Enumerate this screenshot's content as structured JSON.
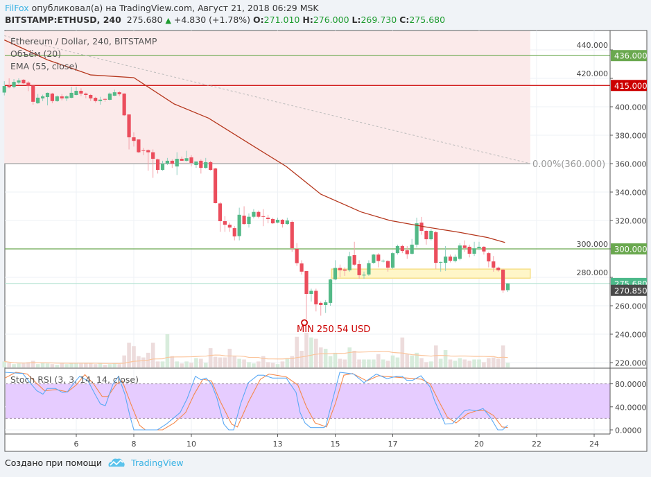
{
  "header": {
    "author": "FilFox",
    "published_text": "опубликовал(а) на TradingView.com, Август 21, 2018 06:29 MSK",
    "symbol": "BITSTAMP:ETHUSD, 240",
    "last": "275.680",
    "change": "+4.830 (+1.78%)",
    "o_label": "O:",
    "o": "271.010",
    "h_label": "H:",
    "h": "276.000",
    "l_label": "L:",
    "l": "269.730",
    "c_label": "C:",
    "c": "275.680"
  },
  "legend": {
    "title": "Ethereum / Dollar, 240, BITSTAMP",
    "volume": "Объём (20)",
    "ema": "EMA (55, close)",
    "stoch": "Stoch RSI (3, 3, 14, 14, close)"
  },
  "annotations": {
    "min_label": "MIN 250.54 USD",
    "fib_label": "0.00%(360.000)"
  },
  "footer": {
    "created_with": "Создано при помощи",
    "brand": "TradingView"
  },
  "colors": {
    "up": "#53b987",
    "down": "#eb4d5c",
    "ema": "#b5361c",
    "accent": "#3bb3e4",
    "resistance_red": "#cc0000",
    "level_green": "#6aa84f",
    "stoch_k": "#5aa9f5",
    "stoch_d": "#f5884b",
    "stoch_band": "#e6ccff",
    "zone_pink": "#fbeaea",
    "zone_yellow": "#fff6c8"
  },
  "chart_data": {
    "type": "candlestick",
    "interval_hours": 4,
    "first_candle_day": 3.5,
    "x_ticks": [
      "6",
      "8",
      "10",
      "13",
      "15",
      "17",
      "20",
      "22",
      "24"
    ],
    "x_tick_days": [
      6,
      8,
      10,
      13,
      15,
      17,
      20,
      22,
      24
    ],
    "y_ticks": [
      "440.000",
      "420.000",
      "400.000",
      "380.000",
      "360.000",
      "340.000",
      "320.000",
      "300.000",
      "280.000",
      "260.000",
      "240.000",
      "220.000"
    ],
    "y_tick_values": [
      440,
      420,
      400,
      380,
      360,
      340,
      320,
      300,
      280,
      260,
      240,
      220
    ],
    "ylim": [
      214,
      455
    ],
    "price_labels": [
      {
        "text": "436.000",
        "value": 436,
        "color": "#6aa84f"
      },
      {
        "text": "415.000",
        "value": 415,
        "color": "#cc0000"
      },
      {
        "text": "300.000",
        "value": 300,
        "color": "#6aa84f"
      },
      {
        "text": "275.680",
        "value": 275.68,
        "color": "#4cb98a"
      },
      {
        "text": "270.850",
        "value": 270.85,
        "color": "#4a4a4a"
      }
    ],
    "horizontal_lines": [
      {
        "value": 436,
        "color": "#6aa84f"
      },
      {
        "value": 415,
        "color": "#cc0000"
      },
      {
        "value": 300,
        "color": "#6aa84f"
      },
      {
        "value": 275.68,
        "color": "#b7e4d4"
      }
    ],
    "fib_level": {
      "value": 360,
      "pct": "0.00%",
      "start_day": 3.5,
      "end_day": 21.78
    },
    "trend_line": [
      [
        3.5,
        450
      ],
      [
        21.78,
        360
      ]
    ],
    "support_zone": {
      "start_day": 14.87,
      "end_day": 21.78,
      "high": 285.8,
      "low": 279.4
    },
    "min_point": {
      "day": 13.93,
      "value": 250.54
    },
    "candles_ohlc": [
      [
        410,
        418,
        408,
        414.6
      ],
      [
        414.6,
        420,
        413,
        413.7
      ],
      [
        414,
        419.5,
        413,
        417.5
      ],
      [
        417,
        420,
        416,
        418.5
      ],
      [
        419,
        419.5,
        416,
        416.5
      ],
      [
        417,
        418,
        411,
        414.6
      ],
      [
        415,
        415,
        401.5,
        403.5
      ],
      [
        402.5,
        409,
        402,
        406.4
      ],
      [
        405.9,
        408.5,
        404,
        407.3
      ],
      [
        406.8,
        410,
        401,
        409.8
      ],
      [
        409.3,
        409.8,
        402.5,
        404
      ],
      [
        404,
        408,
        403.5,
        407.3
      ],
      [
        407.3,
        409,
        404.5,
        405.9
      ],
      [
        405.9,
        408,
        404,
        407.3
      ],
      [
        406.3,
        414,
        406,
        409.8
      ],
      [
        408.3,
        414,
        408,
        411.2
      ],
      [
        411.2,
        413,
        407.5,
        409.3
      ],
      [
        409.3,
        410,
        406,
        408.3
      ],
      [
        408.3,
        409,
        404,
        405.9
      ],
      [
        406.3,
        407,
        403,
        404
      ],
      [
        404,
        407,
        401.5,
        405
      ],
      [
        405.5,
        406,
        403.5,
        405
      ],
      [
        404.9,
        410,
        404.5,
        409.3
      ],
      [
        407.8,
        412,
        407.5,
        410.2
      ],
      [
        410.2,
        411,
        407.5,
        408.8
      ],
      [
        409.3,
        409.5,
        393.5,
        394
      ],
      [
        394.6,
        394.6,
        370,
        378.5
      ],
      [
        378.5,
        382,
        372,
        376
      ],
      [
        377,
        377,
        367.5,
        368
      ],
      [
        369.4,
        371,
        366,
        369
      ],
      [
        369.5,
        370,
        355,
        368
      ],
      [
        368,
        370,
        350,
        363.4
      ],
      [
        363,
        363.5,
        353,
        355.6
      ],
      [
        355.6,
        362,
        355,
        360
      ],
      [
        360,
        364,
        359,
        362
      ],
      [
        362,
        363,
        357,
        360
      ],
      [
        358,
        368,
        352,
        363.4
      ],
      [
        363.4,
        365,
        362,
        362
      ],
      [
        362,
        369,
        361.5,
        363.8
      ],
      [
        364.4,
        366,
        358,
        360.5
      ],
      [
        359,
        361.5,
        357,
        361.5
      ],
      [
        362,
        363,
        353,
        357
      ],
      [
        357,
        364,
        356.5,
        361
      ],
      [
        361,
        362,
        355,
        355.6
      ],
      [
        356.6,
        357,
        332,
        332.2
      ],
      [
        332,
        333,
        312,
        319.5
      ],
      [
        319.5,
        323,
        312,
        317
      ],
      [
        317,
        318.5,
        312,
        315
      ],
      [
        314.6,
        316,
        306,
        308.8
      ],
      [
        309,
        329,
        306,
        324
      ],
      [
        323.4,
        330,
        317,
        317.5
      ],
      [
        317.5,
        325,
        315,
        322.6
      ],
      [
        322.6,
        328,
        321.5,
        326
      ],
      [
        326,
        327,
        321.5,
        322.6
      ],
      [
        323,
        328,
        316,
        322.6
      ],
      [
        322,
        324,
        318,
        321
      ],
      [
        321,
        322,
        317.5,
        318
      ],
      [
        318.5,
        322,
        318,
        320.5
      ],
      [
        320.5,
        321,
        315,
        317.5
      ],
      [
        317.5,
        322,
        317,
        320
      ],
      [
        319,
        320,
        298,
        300.5
      ],
      [
        300,
        304,
        288,
        290
      ],
      [
        289.8,
        292,
        282,
        284
      ],
      [
        284.4,
        284.4,
        250.54,
        268.3
      ],
      [
        268.3,
        272,
        263,
        270.5
      ],
      [
        270.5,
        272,
        256,
        261
      ],
      [
        262,
        263,
        253,
        260.5
      ],
      [
        260.5,
        264,
        255,
        262.4
      ],
      [
        262,
        279,
        260,
        278.5
      ],
      [
        278.5,
        292,
        278,
        286.6
      ],
      [
        286.6,
        289,
        280,
        285
      ],
      [
        285.5,
        287,
        281,
        284.7
      ],
      [
        285,
        298,
        284,
        294.9
      ],
      [
        295.6,
        305,
        288,
        288.9
      ],
      [
        289.3,
        292,
        279,
        281.5
      ],
      [
        281.5,
        284,
        279,
        281.8
      ],
      [
        282,
        292,
        281,
        290
      ],
      [
        290.2,
        296.5,
        289.5,
        296
      ],
      [
        296,
        297,
        287,
        291.5
      ],
      [
        291.5,
        292.5,
        290.5,
        291.7
      ],
      [
        291.5,
        292,
        284,
        286.8
      ],
      [
        286.8,
        297.5,
        286,
        297
      ],
      [
        297,
        303,
        296,
        302
      ],
      [
        302,
        303,
        297,
        298.5
      ],
      [
        299,
        302,
        293,
        296.3
      ],
      [
        296.6,
        307,
        296,
        303
      ],
      [
        303,
        322,
        301,
        318
      ],
      [
        318.5,
        322.5,
        310,
        312.7
      ],
      [
        312.7,
        313,
        303,
        306.8
      ],
      [
        306.8,
        314,
        306,
        312.7
      ],
      [
        311.7,
        312.7,
        286,
        290.2
      ],
      [
        290.5,
        291,
        284,
        290.8
      ],
      [
        290.2,
        302,
        284.5,
        294.6
      ],
      [
        294.6,
        296,
        290.5,
        291.7
      ],
      [
        291.5,
        296,
        290.5,
        294.4
      ],
      [
        293,
        304,
        292,
        302.4
      ],
      [
        302.4,
        306,
        298,
        300.6
      ],
      [
        301.5,
        303,
        294,
        296.6
      ],
      [
        296.6,
        305,
        295,
        300.4
      ],
      [
        300.5,
        305,
        299,
        301.5
      ],
      [
        301.5,
        302,
        296,
        298.2
      ],
      [
        297,
        298,
        287,
        291.2
      ],
      [
        291.2,
        295,
        284,
        286.8
      ],
      [
        286.8,
        287.5,
        284,
        285
      ],
      [
        285.4,
        286,
        269,
        270.85
      ],
      [
        271.01,
        276,
        269.73,
        275.68
      ]
    ],
    "volume": [
      9,
      7,
      5,
      6,
      6,
      8,
      10,
      5,
      7,
      6,
      5,
      4,
      6,
      5,
      7,
      7,
      6,
      6,
      6,
      5,
      7,
      4,
      5,
      6,
      5,
      18,
      37,
      32,
      17,
      15,
      22,
      37,
      9,
      9,
      50,
      17,
      9,
      6,
      9,
      7,
      14,
      13,
      7,
      29,
      16,
      15,
      15,
      28,
      17,
      13,
      12,
      8,
      6,
      9,
      17,
      8,
      7,
      5,
      9,
      14,
      17,
      46,
      25,
      52,
      45,
      43,
      30,
      28,
      17,
      22,
      13,
      12,
      30,
      25,
      12,
      12,
      12,
      12,
      20,
      12,
      10,
      18,
      15,
      45,
      20,
      18,
      22,
      14,
      8,
      9,
      33,
      13,
      26,
      12,
      10,
      14,
      12,
      10,
      12,
      12,
      8,
      14,
      15,
      13,
      33,
      7
    ],
    "ema_55": [
      [
        3.5,
        447
      ],
      [
        5.0,
        433
      ],
      [
        6.5,
        422.4
      ],
      [
        8.0,
        420.5
      ],
      [
        9.4,
        402
      ],
      [
        10.6,
        392
      ],
      [
        12.1,
        373
      ],
      [
        13.3,
        358
      ],
      [
        14.5,
        338.5
      ],
      [
        15.9,
        326
      ],
      [
        16.9,
        320
      ],
      [
        18.1,
        315.6
      ],
      [
        19.3,
        311.7
      ],
      [
        20.3,
        308
      ],
      [
        20.9,
        304.5
      ]
    ],
    "stoch_rsi": {
      "ylim": [
        0,
        100
      ],
      "y_ticks": [
        "80.0000",
        "40.0000",
        "0.0000"
      ],
      "y_tick_values": [
        80,
        40,
        0
      ],
      "band": [
        20,
        80
      ],
      "k": [
        [
          3.52,
          100
        ],
        [
          4.14,
          98
        ],
        [
          4.39,
          82
        ],
        [
          4.63,
          68
        ],
        [
          4.84,
          62
        ],
        [
          4.99,
          72
        ],
        [
          5.28,
          72
        ],
        [
          5.52,
          65
        ],
        [
          5.69,
          66
        ],
        [
          5.93,
          82
        ],
        [
          6.12,
          93
        ],
        [
          6.41,
          85
        ],
        [
          6.65,
          62
        ],
        [
          6.84,
          45
        ],
        [
          7.01,
          42
        ],
        [
          7.28,
          80
        ],
        [
          7.47,
          93
        ],
        [
          7.69,
          62
        ],
        [
          7.86,
          25
        ],
        [
          8.0,
          0
        ],
        [
          8.82,
          0
        ],
        [
          9.13,
          10
        ],
        [
          9.61,
          30
        ],
        [
          9.86,
          55
        ],
        [
          10.14,
          93
        ],
        [
          10.34,
          87
        ],
        [
          10.51,
          90
        ],
        [
          10.7,
          80
        ],
        [
          10.89,
          55
        ],
        [
          11.13,
          10
        ],
        [
          11.3,
          0
        ],
        [
          11.47,
          0
        ],
        [
          11.71,
          45
        ],
        [
          11.98,
          82
        ],
        [
          12.31,
          95
        ],
        [
          12.51,
          95
        ],
        [
          12.82,
          90
        ],
        [
          13.3,
          90
        ],
        [
          13.64,
          65
        ],
        [
          13.78,
          30
        ],
        [
          13.95,
          12
        ],
        [
          14.14,
          4
        ],
        [
          14.6,
          4
        ],
        [
          14.67,
          6
        ],
        [
          15.16,
          100
        ],
        [
          15.64,
          97
        ],
        [
          16.0,
          82
        ],
        [
          16.43,
          97
        ],
        [
          16.8,
          89
        ],
        [
          17.13,
          93
        ],
        [
          17.33,
          93
        ],
        [
          17.49,
          86
        ],
        [
          17.69,
          86
        ],
        [
          17.98,
          94
        ],
        [
          18.29,
          75
        ],
        [
          18.46,
          50
        ],
        [
          18.82,
          10
        ],
        [
          19.08,
          11
        ],
        [
          19.49,
          33
        ],
        [
          19.66,
          35
        ],
        [
          19.9,
          33
        ],
        [
          20.14,
          37
        ],
        [
          20.39,
          22
        ],
        [
          20.65,
          0
        ],
        [
          20.82,
          0
        ],
        [
          20.99,
          8
        ]
      ],
      "d": [
        [
          3.52,
          90
        ],
        [
          3.9,
          100
        ],
        [
          4.3,
          97
        ],
        [
          4.6,
          82
        ],
        [
          4.9,
          68
        ],
        [
          5.3,
          70
        ],
        [
          5.7,
          66
        ],
        [
          6.0,
          78
        ],
        [
          6.3,
          96
        ],
        [
          6.6,
          80
        ],
        [
          6.9,
          58
        ],
        [
          7.1,
          58
        ],
        [
          7.4,
          80
        ],
        [
          7.6,
          85
        ],
        [
          7.9,
          45
        ],
        [
          8.2,
          8
        ],
        [
          8.4,
          0
        ],
        [
          9.0,
          0
        ],
        [
          9.4,
          12
        ],
        [
          9.8,
          30
        ],
        [
          10.1,
          62
        ],
        [
          10.4,
          88
        ],
        [
          10.7,
          85
        ],
        [
          11.0,
          50
        ],
        [
          11.4,
          10
        ],
        [
          11.6,
          5
        ],
        [
          12.0,
          50
        ],
        [
          12.4,
          88
        ],
        [
          12.7,
          97
        ],
        [
          13.3,
          92
        ],
        [
          13.7,
          78
        ],
        [
          14.0,
          40
        ],
        [
          14.3,
          12
        ],
        [
          14.7,
          5
        ],
        [
          15.0,
          45
        ],
        [
          15.3,
          95
        ],
        [
          15.6,
          98
        ],
        [
          16.1,
          85
        ],
        [
          16.5,
          94
        ],
        [
          17.0,
          92
        ],
        [
          17.5,
          90
        ],
        [
          18.0,
          88
        ],
        [
          18.3,
          80
        ],
        [
          18.6,
          50
        ],
        [
          18.9,
          22
        ],
        [
          19.2,
          12
        ],
        [
          19.6,
          28
        ],
        [
          19.9,
          33
        ],
        [
          20.2,
          34
        ],
        [
          20.5,
          25
        ],
        [
          20.8,
          5
        ],
        [
          21.0,
          4
        ]
      ]
    }
  }
}
